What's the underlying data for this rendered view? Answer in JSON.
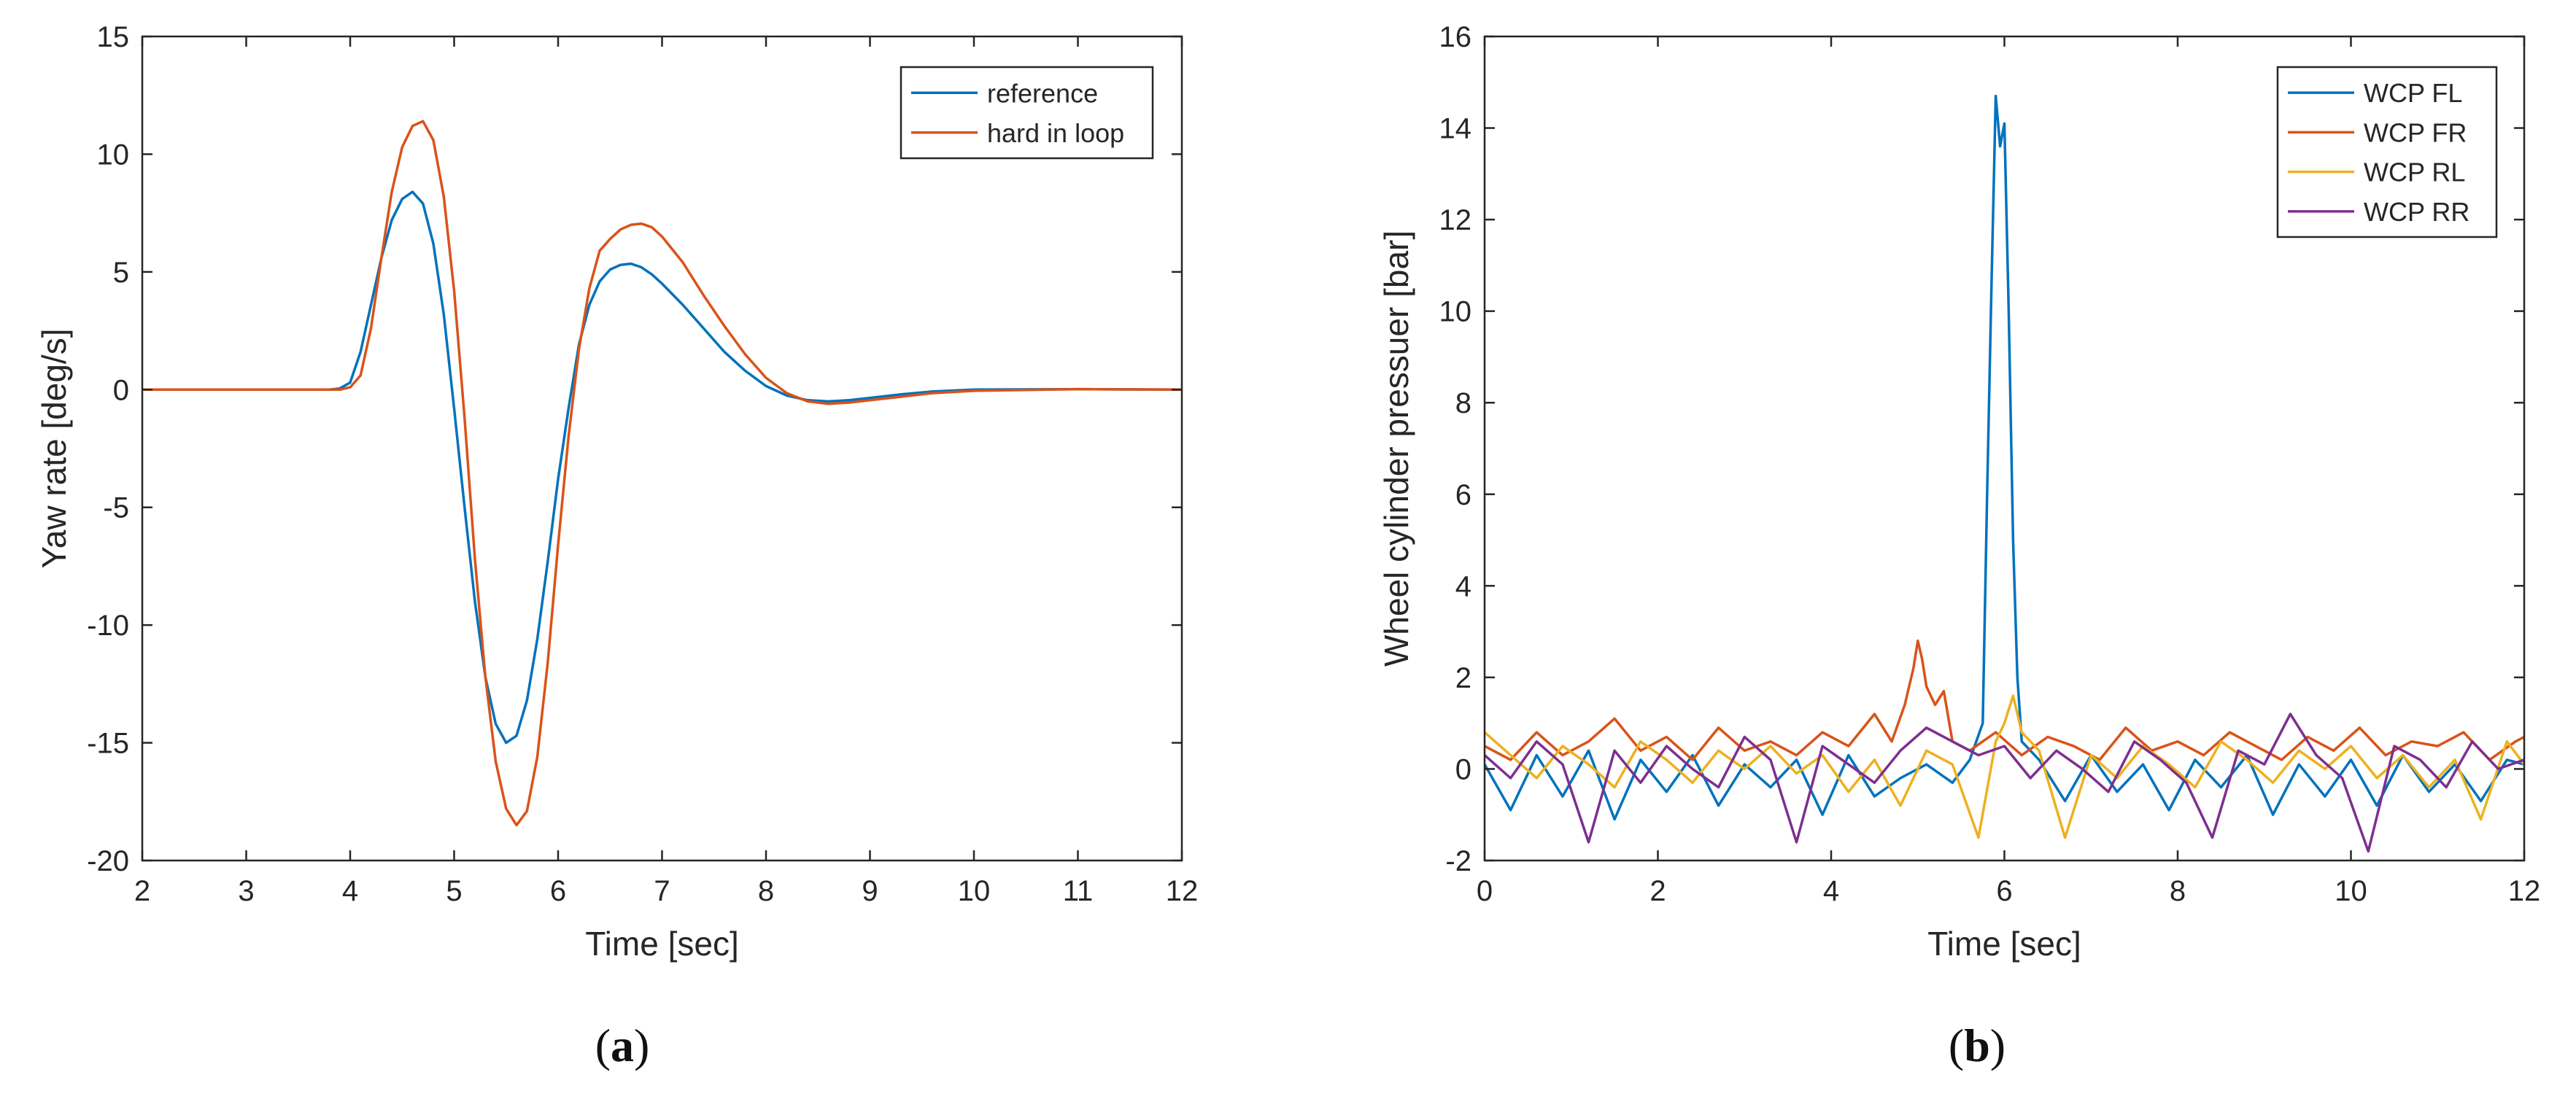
{
  "chart_data": [
    {
      "type": "line",
      "title": "",
      "xlabel": "Time [sec]",
      "ylabel": "Yaw rate [deg/s]",
      "xlim": [
        2,
        12
      ],
      "ylim": [
        -20,
        15
      ],
      "xticks": [
        2,
        3,
        4,
        5,
        6,
        7,
        8,
        9,
        10,
        11,
        12
      ],
      "yticks": [
        -20,
        -15,
        -10,
        -5,
        0,
        5,
        10,
        15
      ],
      "grid": false,
      "legend_position": "top-right",
      "caption_letter": "a",
      "caption_open": "(",
      "caption_close": ")",
      "series": [
        {
          "name": "reference",
          "color": "#0072BD",
          "x": [
            2,
            3,
            3.8,
            3.9,
            4.0,
            4.1,
            4.2,
            4.3,
            4.4,
            4.5,
            4.6,
            4.7,
            4.8,
            4.9,
            5.0,
            5.1,
            5.2,
            5.3,
            5.4,
            5.5,
            5.6,
            5.7,
            5.8,
            5.9,
            6.0,
            6.1,
            6.2,
            6.3,
            6.4,
            6.5,
            6.6,
            6.7,
            6.8,
            6.9,
            7.0,
            7.2,
            7.4,
            7.6,
            7.8,
            8.0,
            8.2,
            8.4,
            8.6,
            8.8,
            9.0,
            9.3,
            9.6,
            10,
            11,
            12
          ],
          "y": [
            0,
            0,
            0,
            0.05,
            0.3,
            1.6,
            3.6,
            5.6,
            7.2,
            8.1,
            8.4,
            7.9,
            6.2,
            3.2,
            -0.8,
            -5.0,
            -9.0,
            -12.2,
            -14.2,
            -15.0,
            -14.7,
            -13.2,
            -10.6,
            -7.3,
            -3.8,
            -0.8,
            1.9,
            3.6,
            4.6,
            5.1,
            5.3,
            5.35,
            5.2,
            4.9,
            4.5,
            3.6,
            2.6,
            1.6,
            0.8,
            0.15,
            -0.25,
            -0.45,
            -0.5,
            -0.45,
            -0.35,
            -0.2,
            -0.08,
            0,
            0.02,
            0
          ]
        },
        {
          "name": "hard in loop",
          "color": "#D95319",
          "x": [
            2,
            3,
            3.9,
            4.0,
            4.1,
            4.2,
            4.3,
            4.4,
            4.5,
            4.6,
            4.7,
            4.8,
            4.9,
            5.0,
            5.1,
            5.2,
            5.3,
            5.4,
            5.5,
            5.6,
            5.7,
            5.8,
            5.9,
            6.0,
            6.1,
            6.2,
            6.3,
            6.4,
            6.5,
            6.6,
            6.7,
            6.8,
            6.9,
            7.0,
            7.2,
            7.4,
            7.6,
            7.8,
            8.0,
            8.2,
            8.4,
            8.6,
            8.8,
            9.0,
            9.3,
            9.6,
            10,
            11,
            12
          ],
          "y": [
            0,
            0,
            0,
            0.1,
            0.6,
            2.6,
            5.6,
            8.4,
            10.3,
            11.2,
            11.4,
            10.6,
            8.2,
            4.2,
            -1.2,
            -7.2,
            -12.2,
            -15.8,
            -17.8,
            -18.5,
            -17.9,
            -15.6,
            -11.6,
            -6.6,
            -2.0,
            1.7,
            4.3,
            5.9,
            6.4,
            6.8,
            7.0,
            7.05,
            6.9,
            6.5,
            5.4,
            4.0,
            2.7,
            1.5,
            0.5,
            -0.15,
            -0.5,
            -0.6,
            -0.55,
            -0.45,
            -0.3,
            -0.15,
            -0.05,
            0.02,
            0
          ]
        }
      ]
    },
    {
      "type": "line",
      "title": "",
      "xlabel": "Time [sec]",
      "ylabel": "Wheel cylinder pressuer [bar]",
      "xlim": [
        0,
        12
      ],
      "ylim": [
        -2,
        16
      ],
      "xticks": [
        0,
        2,
        4,
        6,
        8,
        10,
        12
      ],
      "yticks": [
        -2,
        0,
        2,
        4,
        6,
        8,
        10,
        12,
        14,
        16
      ],
      "grid": false,
      "legend_position": "top-right",
      "caption_letter": "b",
      "caption_open": "(",
      "caption_close": ")",
      "series": [
        {
          "name": "WCP FL",
          "color": "#0072BD",
          "x": [
            0,
            0.3,
            0.6,
            0.9,
            1.2,
            1.5,
            1.8,
            2.1,
            2.4,
            2.7,
            3.0,
            3.3,
            3.6,
            3.9,
            4.2,
            4.5,
            4.8,
            5.1,
            5.4,
            5.6,
            5.75,
            5.8,
            5.85,
            5.9,
            5.95,
            6.0,
            6.05,
            6.1,
            6.15,
            6.2,
            6.4,
            6.7,
            7.0,
            7.3,
            7.6,
            7.9,
            8.2,
            8.5,
            8.8,
            9.1,
            9.4,
            9.7,
            10.0,
            10.3,
            10.6,
            10.9,
            11.2,
            11.5,
            11.8,
            12.0
          ],
          "y": [
            0.1,
            -0.9,
            0.3,
            -0.6,
            0.4,
            -1.1,
            0.2,
            -0.5,
            0.3,
            -0.8,
            0.1,
            -0.4,
            0.2,
            -1.0,
            0.3,
            -0.6,
            -0.2,
            0.1,
            -0.3,
            0.2,
            1.0,
            6.0,
            10.5,
            14.7,
            13.6,
            14.1,
            10.0,
            5.0,
            2.0,
            0.6,
            0.2,
            -0.7,
            0.3,
            -0.5,
            0.1,
            -0.9,
            0.2,
            -0.4,
            0.3,
            -1.0,
            0.1,
            -0.6,
            0.2,
            -0.8,
            0.3,
            -0.5,
            0.1,
            -0.7,
            0.2,
            0.1
          ]
        },
        {
          "name": "WCP FR",
          "color": "#D95319",
          "x": [
            0,
            0.3,
            0.6,
            0.9,
            1.2,
            1.5,
            1.8,
            2.1,
            2.4,
            2.7,
            3.0,
            3.3,
            3.6,
            3.9,
            4.2,
            4.5,
            4.7,
            4.85,
            4.95,
            5.0,
            5.05,
            5.1,
            5.2,
            5.3,
            5.4,
            5.6,
            5.9,
            6.2,
            6.5,
            6.8,
            7.1,
            7.4,
            7.7,
            8.0,
            8.3,
            8.6,
            8.9,
            9.2,
            9.5,
            9.8,
            10.1,
            10.4,
            10.7,
            11.0,
            11.3,
            11.6,
            11.9,
            12.0
          ],
          "y": [
            0.5,
            0.2,
            0.8,
            0.3,
            0.6,
            1.1,
            0.4,
            0.7,
            0.2,
            0.9,
            0.4,
            0.6,
            0.3,
            0.8,
            0.5,
            1.2,
            0.6,
            1.4,
            2.2,
            2.8,
            2.4,
            1.8,
            1.4,
            1.7,
            0.6,
            0.4,
            0.8,
            0.3,
            0.7,
            0.5,
            0.2,
            0.9,
            0.4,
            0.6,
            0.3,
            0.8,
            0.5,
            0.2,
            0.7,
            0.4,
            0.9,
            0.3,
            0.6,
            0.5,
            0.8,
            0.2,
            0.6,
            0.7
          ]
        },
        {
          "name": "WCP RL",
          "color": "#EDB120",
          "x": [
            0,
            0.3,
            0.6,
            0.9,
            1.2,
            1.5,
            1.8,
            2.1,
            2.4,
            2.7,
            3.0,
            3.3,
            3.6,
            3.9,
            4.2,
            4.5,
            4.8,
            5.1,
            5.4,
            5.7,
            5.9,
            6.0,
            6.1,
            6.2,
            6.4,
            6.7,
            7.0,
            7.3,
            7.6,
            7.9,
            8.2,
            8.5,
            8.8,
            9.1,
            9.4,
            9.7,
            10.0,
            10.3,
            10.6,
            10.9,
            11.2,
            11.5,
            11.8,
            12.0
          ],
          "y": [
            0.8,
            0.3,
            -0.2,
            0.5,
            0.1,
            -0.4,
            0.6,
            0.2,
            -0.3,
            0.4,
            0.0,
            0.5,
            -0.1,
            0.3,
            -0.5,
            0.2,
            -0.8,
            0.4,
            0.1,
            -1.5,
            0.6,
            1.0,
            1.6,
            0.8,
            0.4,
            -1.5,
            0.3,
            -0.2,
            0.5,
            0.1,
            -0.4,
            0.6,
            0.2,
            -0.3,
            0.4,
            0.0,
            0.5,
            -0.2,
            0.3,
            -0.4,
            0.2,
            -1.1,
            0.6,
            0.1
          ]
        },
        {
          "name": "WCP RR",
          "color": "#7E2F8E",
          "x": [
            0,
            0.3,
            0.6,
            0.9,
            1.2,
            1.5,
            1.8,
            2.1,
            2.4,
            2.7,
            3.0,
            3.3,
            3.6,
            3.9,
            4.2,
            4.5,
            4.8,
            5.1,
            5.4,
            5.7,
            6.0,
            6.3,
            6.6,
            6.9,
            7.2,
            7.5,
            7.8,
            8.1,
            8.4,
            8.7,
            9.0,
            9.3,
            9.6,
            9.9,
            10.2,
            10.5,
            10.8,
            11.1,
            11.4,
            11.7,
            12.0
          ],
          "y": [
            0.3,
            -0.2,
            0.6,
            0.1,
            -1.6,
            0.4,
            -0.3,
            0.5,
            0.0,
            -0.4,
            0.7,
            0.2,
            -1.6,
            0.5,
            0.1,
            -0.3,
            0.4,
            0.9,
            0.6,
            0.3,
            0.5,
            -0.2,
            0.4,
            0.0,
            -0.5,
            0.6,
            0.2,
            -0.3,
            -1.5,
            0.4,
            0.1,
            1.2,
            0.3,
            -0.2,
            -1.8,
            0.5,
            0.2,
            -0.4,
            0.6,
            0.0,
            0.2
          ]
        }
      ]
    }
  ]
}
